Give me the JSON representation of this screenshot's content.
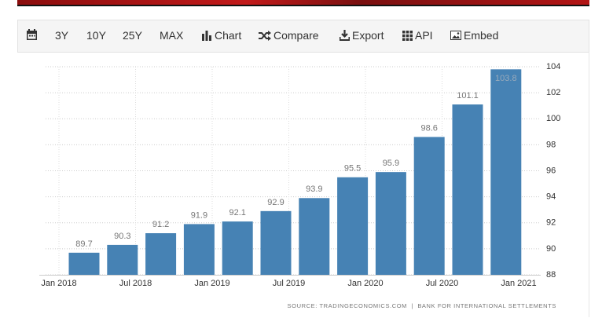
{
  "toolbar": {
    "items": [
      "3Y",
      "10Y",
      "25Y",
      "MAX",
      "Chart",
      "Compare",
      "Export",
      "API",
      "Embed"
    ]
  },
  "chart_data": {
    "type": "bar",
    "values": [
      89.7,
      90.3,
      91.2,
      91.9,
      92.1,
      92.9,
      93.9,
      95.5,
      95.9,
      98.6,
      101.1,
      103.8
    ],
    "color": "#4682b4",
    "xticks": [
      "Jan 2018",
      "Jul 2018",
      "Jan 2019",
      "Jul 2019",
      "Jan 2020",
      "Jul 2020",
      "Jan 2021"
    ],
    "ylim": [
      88,
      104
    ],
    "yticks": [
      88,
      90,
      92,
      94,
      96,
      98,
      100,
      102,
      104
    ],
    "grid": true,
    "source": "SOURCE: TRADINGECONOMICS.COM  |  BANK FOR INTERNATIONAL SETTLEMENTS"
  }
}
